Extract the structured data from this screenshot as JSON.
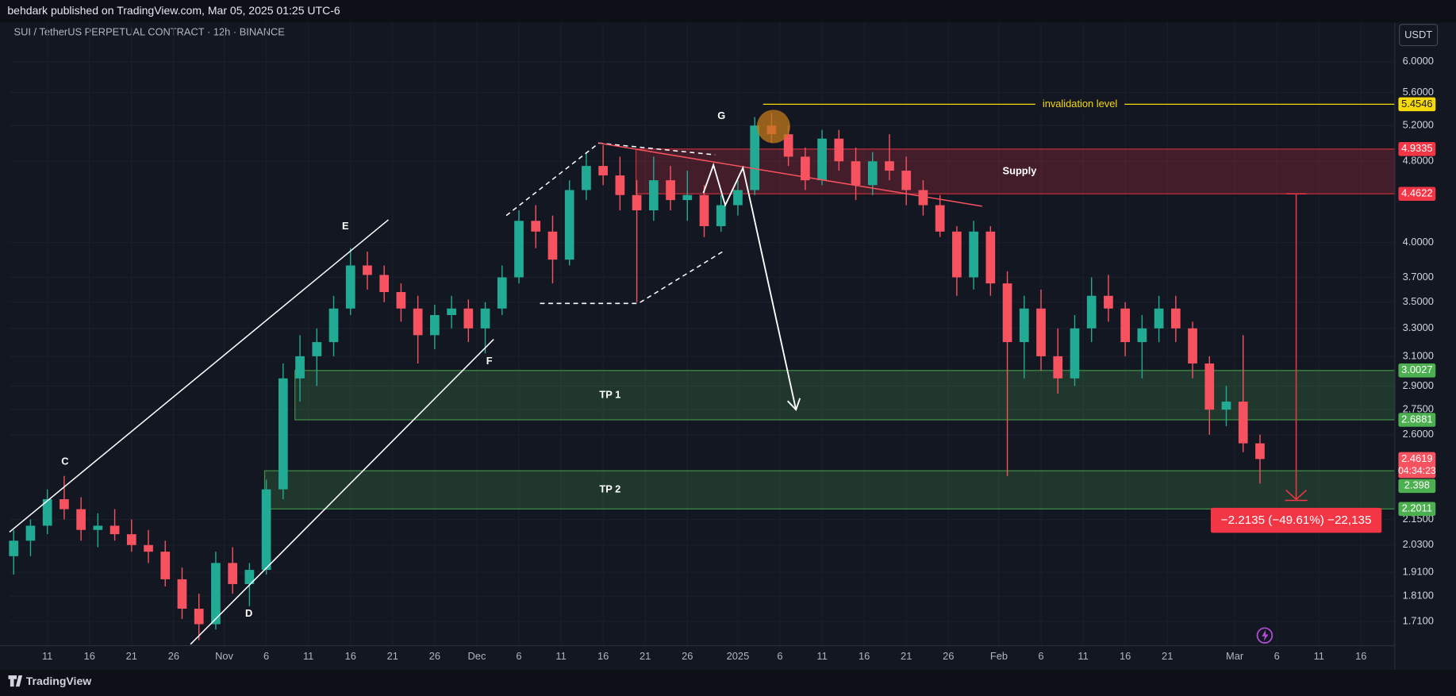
{
  "header": {
    "publisher": "behdark published on TradingView.com, Mar 05, 2025 01:25 UTC-6",
    "brand": "TradingView"
  },
  "chart_data": {
    "type": "candlestick",
    "title": "SUI / TetherUS PERPETUAL CONTRACT · 12h · BINANCE",
    "currency": "USDT",
    "log_scale": true,
    "grid": true,
    "up_color": "#22ab94",
    "down_color": "#f7525f",
    "xlim": [
      -4.52,
      160
    ],
    "ylim": [
      1.62,
      6.58
    ],
    "xticks": [
      {
        "value": 0,
        "label": "11"
      },
      {
        "value": 5,
        "label": "16"
      },
      {
        "value": 10,
        "label": "21"
      },
      {
        "value": 15,
        "label": "26"
      },
      {
        "value": 21,
        "label": "Nov"
      },
      {
        "value": 26,
        "label": "6"
      },
      {
        "value": 31,
        "label": "11"
      },
      {
        "value": 36,
        "label": "16"
      },
      {
        "value": 41,
        "label": "21"
      },
      {
        "value": 46,
        "label": "26"
      },
      {
        "value": 51,
        "label": "Dec"
      },
      {
        "value": 56,
        "label": "6"
      },
      {
        "value": 61,
        "label": "11"
      },
      {
        "value": 66,
        "label": "16"
      },
      {
        "value": 71,
        "label": "21"
      },
      {
        "value": 76,
        "label": "26"
      },
      {
        "value": 82,
        "label": "2025"
      },
      {
        "value": 87,
        "label": "6"
      },
      {
        "value": 92,
        "label": "11"
      },
      {
        "value": 97,
        "label": "16"
      },
      {
        "value": 102,
        "label": "21"
      },
      {
        "value": 107,
        "label": "26"
      },
      {
        "value": 113,
        "label": "Feb"
      },
      {
        "value": 118,
        "label": "6"
      },
      {
        "value": 123,
        "label": "11"
      },
      {
        "value": 128,
        "label": "16"
      },
      {
        "value": 133,
        "label": "21"
      },
      {
        "value": 141,
        "label": "Mar"
      },
      {
        "value": 146,
        "label": "6"
      },
      {
        "value": 151,
        "label": "11"
      },
      {
        "value": 156,
        "label": "16"
      }
    ],
    "yticks": [
      {
        "value": 6,
        "label": "6.0000"
      },
      {
        "value": 5.6,
        "label": "5.6000"
      },
      {
        "value": 5.2,
        "label": "5.2000"
      },
      {
        "value": 4.8,
        "label": "4.8000"
      },
      {
        "value": 4,
        "label": "4.0000"
      },
      {
        "value": 3.7,
        "label": "3.7000"
      },
      {
        "value": 3.5,
        "label": "3.5000"
      },
      {
        "value": 3.3,
        "label": "3.3000"
      },
      {
        "value": 3.1,
        "label": "3.1000"
      },
      {
        "value": 2.9,
        "label": "2.9000"
      },
      {
        "value": 2.75,
        "label": "2.7500"
      },
      {
        "value": 2.6,
        "label": "2.6000"
      },
      {
        "value": 2.15,
        "label": "2.1500"
      },
      {
        "value": 2.03,
        "label": "2.0300"
      },
      {
        "value": 1.91,
        "label": "1.9100"
      },
      {
        "value": 1.81,
        "label": "1.8100"
      },
      {
        "value": 1.71,
        "label": "1.7100"
      }
    ],
    "x": [
      -4,
      -2,
      0,
      2,
      4,
      6,
      8,
      10,
      12,
      14,
      16,
      18,
      20,
      22,
      24,
      26,
      28,
      30,
      32,
      34,
      36,
      38,
      40,
      42,
      44,
      46,
      48,
      50,
      52,
      54,
      56,
      58,
      60,
      62,
      64,
      66,
      68,
      70,
      72,
      74,
      76,
      78,
      80,
      82,
      84,
      86,
      88,
      90,
      92,
      94,
      96,
      98,
      100,
      102,
      104,
      106,
      108,
      110,
      112,
      114,
      116,
      118,
      120,
      122,
      124,
      126,
      128,
      130,
      132,
      134,
      136,
      138,
      140,
      142,
      144
    ],
    "open": [
      1.98,
      2.05,
      2.12,
      2.25,
      2.2,
      2.1,
      2.12,
      2.08,
      2.03,
      2.0,
      1.88,
      1.76,
      1.7,
      1.95,
      1.86,
      1.92,
      2.3,
      2.95,
      3.1,
      3.2,
      3.45,
      3.8,
      3.72,
      3.58,
      3.45,
      3.25,
      3.4,
      3.45,
      3.3,
      3.45,
      3.7,
      4.2,
      4.1,
      3.85,
      4.5,
      4.75,
      4.65,
      4.45,
      4.3,
      4.6,
      4.4,
      4.45,
      4.15,
      4.35,
      4.5,
      5.2,
      5.1,
      4.85,
      4.6,
      5.05,
      4.8,
      4.55,
      4.8,
      4.7,
      4.5,
      4.35,
      4.1,
      3.7,
      4.1,
      3.65,
      3.2,
      3.45,
      3.1,
      2.95,
      3.3,
      3.55,
      3.45,
      3.2,
      3.3,
      3.45,
      3.3,
      3.05,
      2.75,
      2.8,
      2.55
    ],
    "high": [
      2.1,
      2.15,
      2.3,
      2.37,
      2.26,
      2.18,
      2.2,
      2.15,
      2.1,
      2.05,
      1.93,
      1.82,
      2.0,
      2.02,
      1.95,
      2.35,
      3.05,
      3.25,
      3.3,
      3.55,
      3.95,
      3.92,
      3.8,
      3.65,
      3.55,
      3.48,
      3.55,
      3.52,
      3.5,
      3.8,
      4.3,
      4.35,
      4.25,
      4.6,
      4.9,
      4.98,
      4.85,
      4.6,
      4.85,
      4.75,
      4.7,
      4.55,
      4.45,
      4.6,
      5.3,
      5.35,
      5.2,
      4.95,
      5.15,
      5.15,
      4.95,
      4.9,
      5.1,
      4.85,
      4.6,
      4.45,
      4.15,
      4.2,
      4.15,
      3.75,
      3.55,
      3.6,
      3.3,
      3.4,
      3.7,
      3.72,
      3.5,
      3.4,
      3.55,
      3.55,
      3.35,
      3.1,
      2.9,
      3.25,
      2.6
    ],
    "low": [
      1.9,
      1.98,
      2.08,
      2.15,
      2.05,
      2.02,
      2.05,
      2.0,
      1.95,
      1.85,
      1.72,
      1.64,
      1.68,
      1.82,
      1.77,
      1.9,
      2.25,
      2.8,
      2.9,
      3.1,
      3.4,
      3.6,
      3.5,
      3.35,
      3.05,
      3.15,
      3.3,
      3.2,
      3.12,
      3.4,
      3.65,
      3.95,
      3.65,
      3.8,
      4.4,
      4.55,
      4.3,
      3.5,
      4.2,
      4.3,
      4.2,
      4.05,
      4.1,
      4.25,
      4.45,
      5.0,
      4.75,
      4.5,
      4.55,
      4.7,
      4.4,
      4.45,
      4.6,
      4.35,
      4.25,
      4.05,
      3.55,
      3.6,
      3.55,
      2.37,
      2.95,
      3.0,
      2.85,
      2.9,
      3.2,
      3.35,
      3.1,
      2.95,
      3.2,
      3.2,
      2.95,
      2.6,
      2.65,
      2.5,
      2.33
    ],
    "close": [
      2.05,
      2.12,
      2.25,
      2.2,
      2.1,
      2.12,
      2.08,
      2.03,
      2.0,
      1.88,
      1.76,
      1.7,
      1.95,
      1.86,
      1.92,
      2.3,
      2.95,
      3.1,
      3.2,
      3.45,
      3.8,
      3.72,
      3.58,
      3.45,
      3.25,
      3.4,
      3.45,
      3.3,
      3.45,
      3.7,
      4.2,
      4.1,
      3.85,
      4.5,
      4.75,
      4.65,
      4.45,
      4.3,
      4.6,
      4.4,
      4.45,
      4.15,
      4.35,
      4.5,
      5.2,
      5.1,
      4.85,
      4.6,
      5.05,
      4.8,
      4.55,
      4.8,
      4.7,
      4.5,
      4.35,
      4.1,
      3.7,
      4.1,
      3.65,
      3.2,
      3.45,
      3.1,
      2.95,
      3.3,
      3.55,
      3.45,
      3.2,
      3.3,
      3.45,
      3.3,
      3.05,
      2.75,
      2.8,
      2.55,
      2.4619
    ],
    "countdown": "04:34:23",
    "zones": [
      {
        "name": "Supply",
        "low": 4.4622,
        "high": 4.9335,
        "start": 69.9,
        "color": "#f23645"
      },
      {
        "name": "TP 1",
        "low": 2.6881,
        "high": 3.0027,
        "start": 29.4,
        "color": "#4caf50"
      },
      {
        "name": "TP 2",
        "low": 2.2011,
        "high": 2.398,
        "start": 25.8,
        "color": "#4caf50"
      }
    ],
    "invalidation": {
      "label": "invalidation level",
      "value": 5.4546,
      "start": 85,
      "color": "#f5d90a"
    },
    "annotations": [
      "C",
      "D",
      "E",
      "F",
      "G"
    ],
    "drawings": [
      {
        "color": "#ffffff",
        "dashed": false,
        "arrow": false,
        "points": [
          [
            -4.5,
            2.09
          ],
          [
            40.5,
            4.21
          ]
        ]
      },
      {
        "color": "#ffffff",
        "dashed": false,
        "arrow": false,
        "points": [
          [
            17.0,
            1.625
          ],
          [
            53.0,
            3.22
          ]
        ]
      },
      {
        "color": "#ffffff",
        "dashed": true,
        "arrow": false,
        "points": [
          [
            54.5,
            4.25
          ],
          [
            65.5,
            5.0
          ],
          [
            79.3,
            4.87
          ]
        ]
      },
      {
        "color": "#ffffff",
        "dashed": true,
        "arrow": false,
        "points": [
          [
            58.5,
            3.49
          ],
          [
            70.2,
            3.49
          ],
          [
            80.2,
            3.92
          ]
        ]
      },
      {
        "color": "#f7525f",
        "dashed": false,
        "arrow": false,
        "points": [
          [
            65.5,
            5.0
          ],
          [
            111.0,
            4.34
          ]
        ]
      },
      {
        "color": "#ffffff",
        "dashed": false,
        "arrow": true,
        "points": [
          [
            77.9,
            4.47
          ],
          [
            79.1,
            4.76
          ],
          [
            80.5,
            4.35
          ],
          [
            82.6,
            4.73
          ],
          [
            83.7,
            4.31
          ],
          [
            88.9,
            2.75
          ]
        ]
      }
    ],
    "measure": {
      "x": 148.3,
      "from": 4.4622,
      "change": -2.2135,
      "label": "−2.2135 (−49.61%) −22,135",
      "color": "#f23645"
    }
  }
}
